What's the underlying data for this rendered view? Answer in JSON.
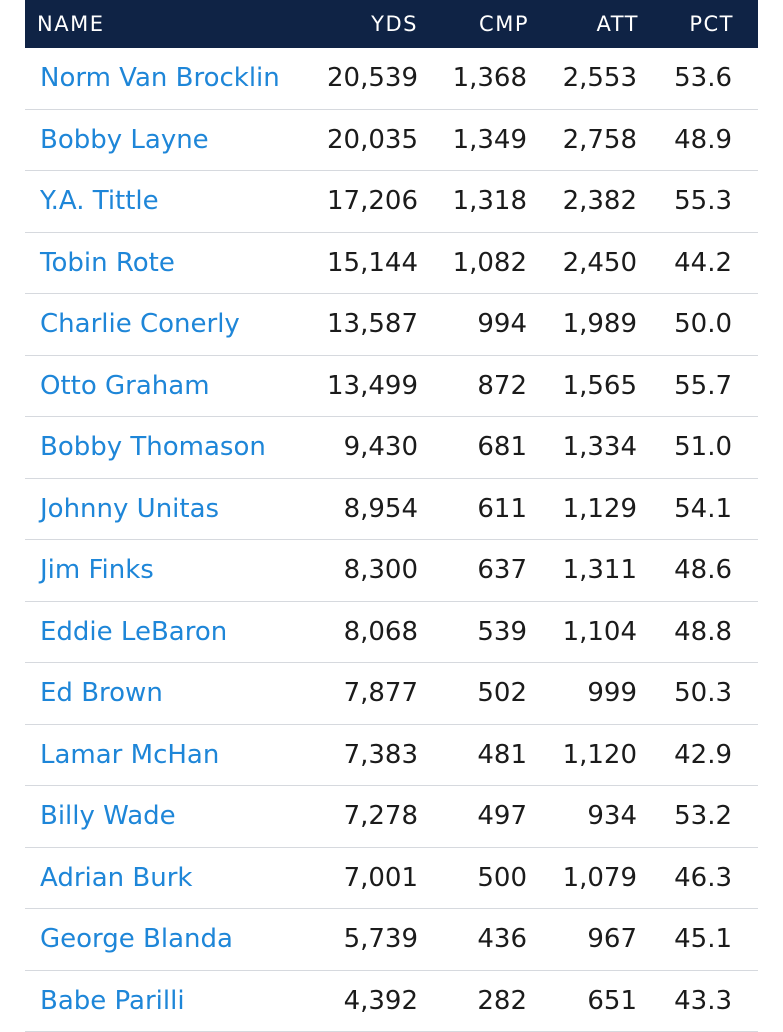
{
  "table": {
    "headers": {
      "name": "NAME",
      "yds": "YDS",
      "cmp": "CMP",
      "att": "ATT",
      "pct": "PCT"
    },
    "rows": [
      {
        "name": "Norm Van Brocklin",
        "yds": "20,539",
        "cmp": "1,368",
        "att": "2,553",
        "pct": "53.6"
      },
      {
        "name": "Bobby Layne",
        "yds": "20,035",
        "cmp": "1,349",
        "att": "2,758",
        "pct": "48.9"
      },
      {
        "name": "Y.A. Tittle",
        "yds": "17,206",
        "cmp": "1,318",
        "att": "2,382",
        "pct": "55.3"
      },
      {
        "name": "Tobin Rote",
        "yds": "15,144",
        "cmp": "1,082",
        "att": "2,450",
        "pct": "44.2"
      },
      {
        "name": "Charlie Conerly",
        "yds": "13,587",
        "cmp": "994",
        "att": "1,989",
        "pct": "50.0"
      },
      {
        "name": "Otto Graham",
        "yds": "13,499",
        "cmp": "872",
        "att": "1,565",
        "pct": "55.7"
      },
      {
        "name": "Bobby Thomason",
        "yds": "9,430",
        "cmp": "681",
        "att": "1,334",
        "pct": "51.0"
      },
      {
        "name": "Johnny Unitas",
        "yds": "8,954",
        "cmp": "611",
        "att": "1,129",
        "pct": "54.1"
      },
      {
        "name": "Jim Finks",
        "yds": "8,300",
        "cmp": "637",
        "att": "1,311",
        "pct": "48.6"
      },
      {
        "name": "Eddie LeBaron",
        "yds": "8,068",
        "cmp": "539",
        "att": "1,104",
        "pct": "48.8"
      },
      {
        "name": "Ed Brown",
        "yds": "7,877",
        "cmp": "502",
        "att": "999",
        "pct": "50.3"
      },
      {
        "name": "Lamar McHan",
        "yds": "7,383",
        "cmp": "481",
        "att": "1,120",
        "pct": "42.9"
      },
      {
        "name": "Billy Wade",
        "yds": "7,278",
        "cmp": "497",
        "att": "934",
        "pct": "53.2"
      },
      {
        "name": "Adrian Burk",
        "yds": "7,001",
        "cmp": "500",
        "att": "1,079",
        "pct": "46.3"
      },
      {
        "name": "George Blanda",
        "yds": "5,739",
        "cmp": "436",
        "att": "967",
        "pct": "45.1"
      },
      {
        "name": "Babe Parilli",
        "yds": "4,392",
        "cmp": "282",
        "att": "651",
        "pct": "43.3"
      }
    ]
  },
  "colors": {
    "header_bg": "#0f2345",
    "link": "#1e86d8",
    "text": "#1b1b1b",
    "divider": "#d6d9de"
  }
}
